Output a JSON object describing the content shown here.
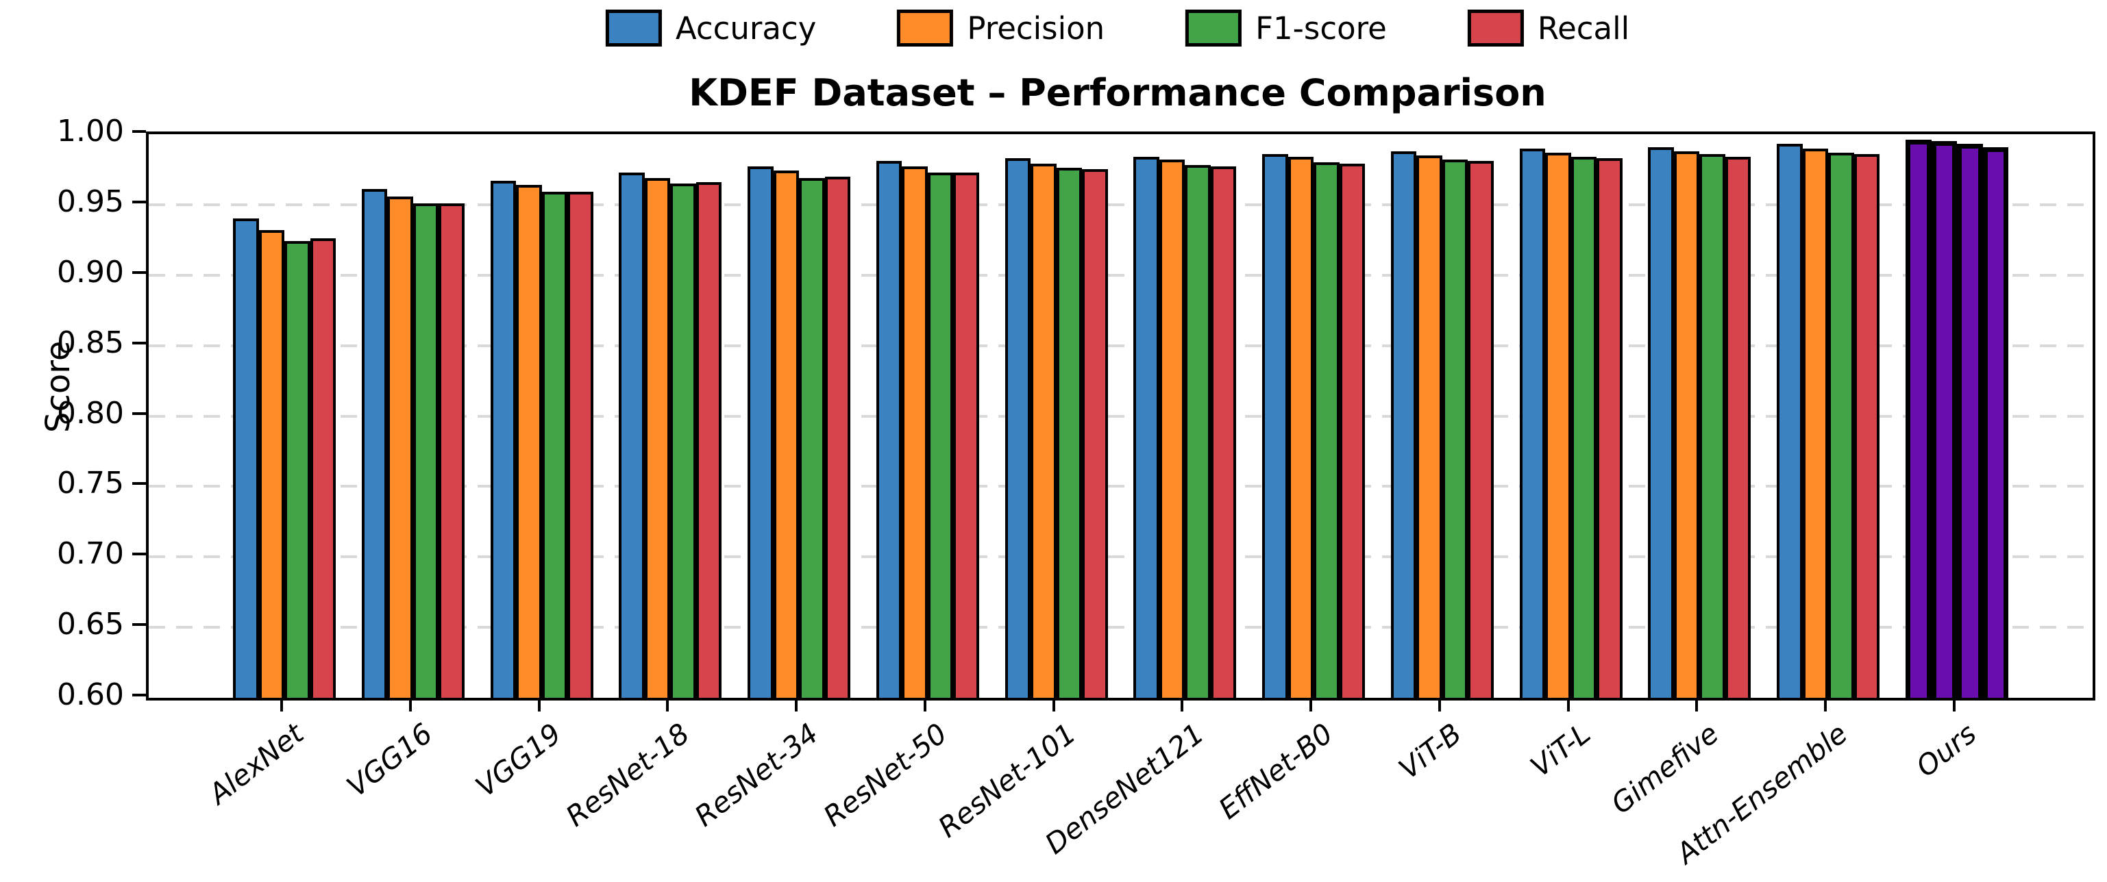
{
  "title": "KDEF Dataset – Performance Comparison",
  "legend": {
    "items": [
      {
        "label": "Accuracy",
        "color": "#3b82c0"
      },
      {
        "label": "Precision",
        "color": "#ff8c29"
      },
      {
        "label": "F1-score",
        "color": "#42a447"
      },
      {
        "label": "Recall",
        "color": "#d8444c"
      }
    ]
  },
  "axes": {
    "ylabel": "Score",
    "ytick_labels": [
      "1.00",
      "0.95",
      "0.90",
      "0.85",
      "0.80",
      "0.75",
      "0.70",
      "0.65",
      "0.60"
    ]
  },
  "chart_data": {
    "type": "bar",
    "title": "KDEF Dataset – Performance Comparison",
    "xlabel": "",
    "ylabel": "Score",
    "ylim": [
      0.6,
      1.0
    ],
    "yticks": [
      0.6,
      0.65,
      0.7,
      0.75,
      0.8,
      0.85,
      0.9,
      0.95,
      1.0
    ],
    "grid": "horizontal dashed",
    "legend_position": "top center outside",
    "bar_edge_color": "#000000",
    "categories": [
      "AlexNet",
      "VGG16",
      "VGG19",
      "ResNet-18",
      "ResNet-34",
      "ResNet-50",
      "ResNet-101",
      "DenseNet121",
      "EffNet-B0",
      "ViT-B",
      "ViT-L",
      "Gimefive",
      "Attn-Ensemble",
      "Ours"
    ],
    "series": [
      {
        "name": "Accuracy",
        "color": "#3b82c0",
        "values": [
          0.94,
          0.961,
          0.967,
          0.973,
          0.977,
          0.981,
          0.983,
          0.984,
          0.986,
          0.988,
          0.99,
          0.991,
          0.993,
          0.996
        ]
      },
      {
        "name": "Precision",
        "color": "#ff8c29",
        "values": [
          0.932,
          0.956,
          0.964,
          0.969,
          0.974,
          0.977,
          0.979,
          0.982,
          0.984,
          0.985,
          0.987,
          0.988,
          0.99,
          0.995
        ]
      },
      {
        "name": "F1-score",
        "color": "#42a447",
        "values": [
          0.924,
          0.951,
          0.959,
          0.965,
          0.969,
          0.973,
          0.976,
          0.978,
          0.98,
          0.982,
          0.984,
          0.986,
          0.987,
          0.993
        ]
      },
      {
        "name": "Recall",
        "color": "#d8444c",
        "values": [
          0.926,
          0.951,
          0.959,
          0.966,
          0.97,
          0.973,
          0.975,
          0.977,
          0.979,
          0.981,
          0.983,
          0.984,
          0.986,
          0.991
        ]
      }
    ],
    "highlight": {
      "category": "Ours",
      "color": "#6a0dad",
      "note": "all four bars of the Ours group are drawn in purple with a heavier black outline"
    }
  }
}
